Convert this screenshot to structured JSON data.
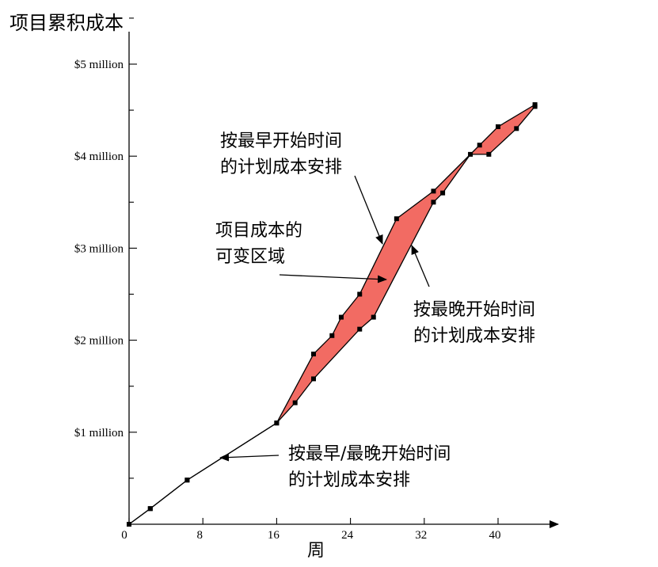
{
  "chart_data": {
    "type": "area",
    "title": "",
    "ylabel": "项目累积成本",
    "xlabel": "周",
    "xlim": [
      0,
      46
    ],
    "ylim": [
      0,
      5.5
    ],
    "x_ticks": [
      {
        "value": 0,
        "label": "0"
      },
      {
        "value": 8,
        "label": "8"
      },
      {
        "value": 16,
        "label": "16"
      },
      {
        "value": 24,
        "label": "24"
      },
      {
        "value": 32,
        "label": "32"
      },
      {
        "value": 40,
        "label": "40"
      }
    ],
    "y_ticks": [
      {
        "value": 1,
        "label": "$1 million"
      },
      {
        "value": 2,
        "label": "$2 million"
      },
      {
        "value": 3,
        "label": "$3 million"
      },
      {
        "value": 4,
        "label": "$4 million"
      },
      {
        "value": 5,
        "label": "$5 million"
      }
    ],
    "series": [
      {
        "name": "按最早开始时间的计划成本安排",
        "points": [
          [
            0,
            0
          ],
          [
            2.3,
            0.17
          ],
          [
            6.3,
            0.48
          ],
          [
            16,
            1.1
          ],
          [
            20,
            1.85
          ],
          [
            22,
            2.05
          ],
          [
            23,
            2.25
          ],
          [
            25,
            2.5
          ],
          [
            29,
            3.32
          ],
          [
            33,
            3.62
          ],
          [
            38,
            4.12
          ],
          [
            40,
            4.32
          ],
          [
            44,
            4.56
          ]
        ]
      },
      {
        "name": "按最晚开始时间的计划成本安排",
        "points": [
          [
            0,
            0
          ],
          [
            2.3,
            0.17
          ],
          [
            6.3,
            0.48
          ],
          [
            16,
            1.1
          ],
          [
            18,
            1.32
          ],
          [
            20,
            1.58
          ],
          [
            25,
            2.12
          ],
          [
            26.5,
            2.25
          ],
          [
            33,
            3.5
          ],
          [
            34,
            3.6
          ],
          [
            37,
            4.02
          ],
          [
            39,
            4.02
          ],
          [
            42,
            4.3
          ],
          [
            44,
            4.54
          ]
        ]
      }
    ],
    "band_color": "#f26b63",
    "annotations": [
      {
        "lines": [
          "按最早开始时间",
          "的计划成本安排"
        ]
      },
      {
        "lines": [
          "项目成本的",
          "可变区域"
        ]
      },
      {
        "lines": [
          "按最晚开始时间",
          "的计划成本安排"
        ]
      },
      {
        "lines": [
          "按最早/最晚开始时间",
          "的计划成本安排"
        ]
      }
    ]
  }
}
